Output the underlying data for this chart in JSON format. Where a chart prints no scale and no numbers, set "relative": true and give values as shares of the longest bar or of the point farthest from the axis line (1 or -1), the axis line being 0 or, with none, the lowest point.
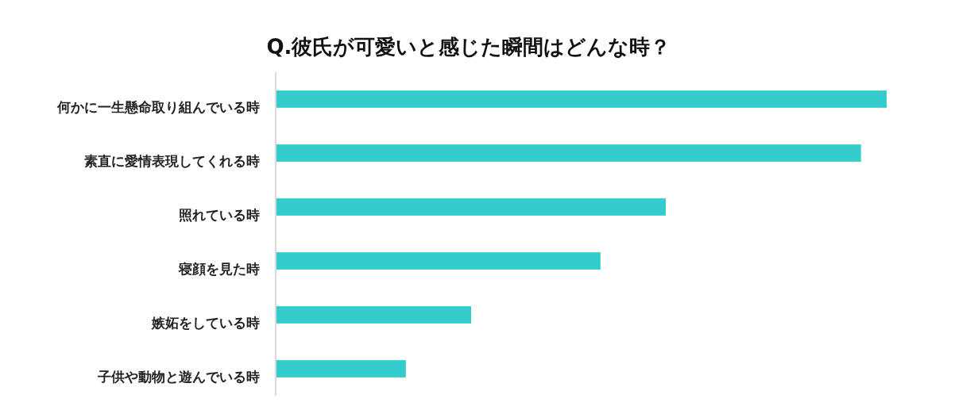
{
  "chart_data": {
    "type": "bar",
    "orientation": "horizontal",
    "relative": true,
    "title": "Q.彼氏が可愛いと感じた瞬間はどんな時？",
    "categories": [
      "何かに一生懸命取り組んでいる時",
      "素直に愛情表現してくれる時",
      "照れている時",
      "寝顔を見た時",
      "嫉妬をしている時",
      "子供や動物と遊んでいる時"
    ],
    "values": [
      1,
      0.958,
      0.638,
      0.531,
      0.319,
      0.212
    ],
    "color": "#33cccc",
    "grid": false
  }
}
